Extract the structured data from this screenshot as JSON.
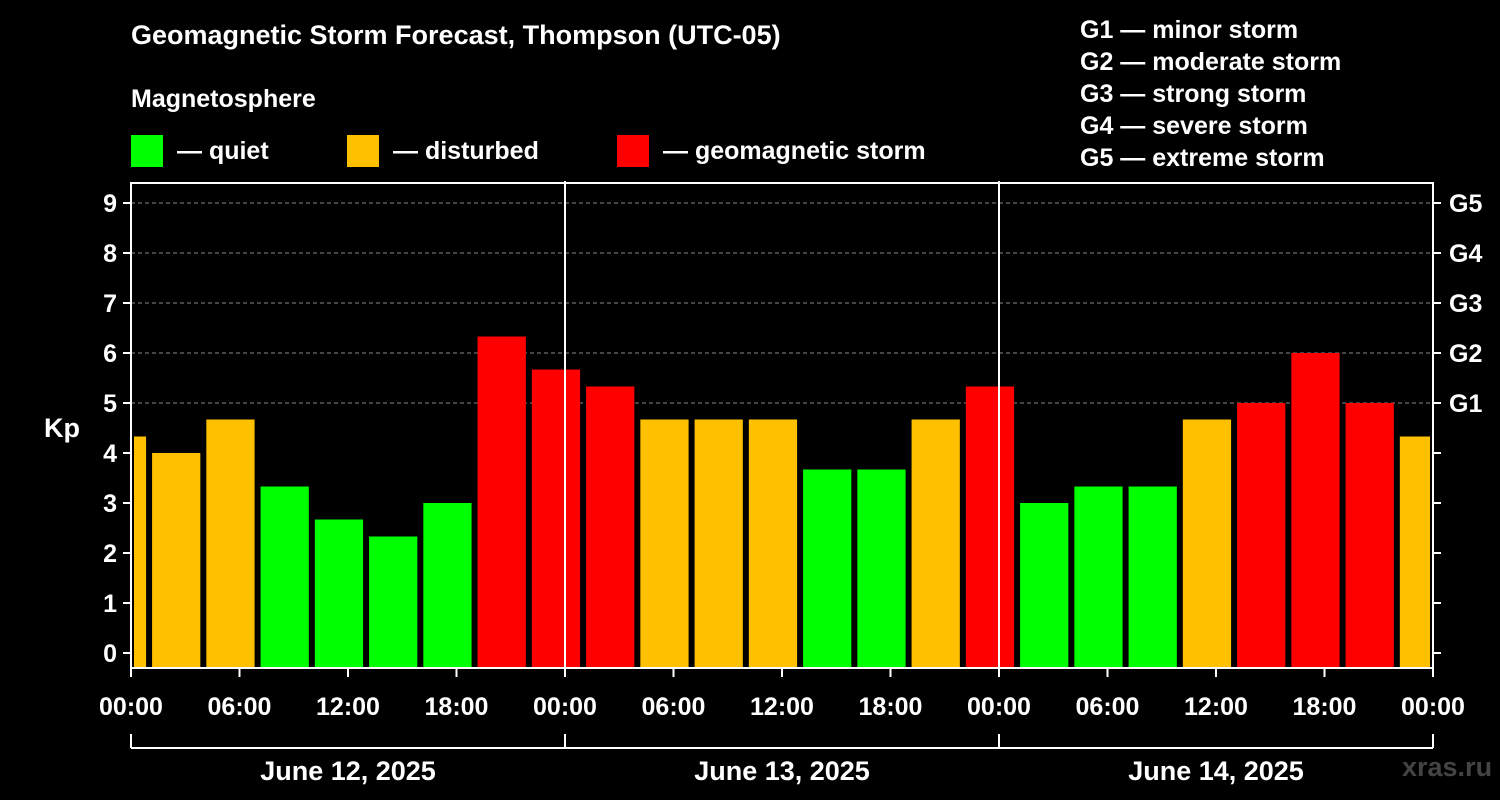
{
  "title": "Geomagnetic Storm Forecast, Thompson (UTC-05)",
  "subtitle": "Magnetosphere",
  "legend": [
    {
      "label": "— quiet",
      "color": "#00ff00"
    },
    {
      "label": "— disturbed",
      "color": "#ffc000"
    },
    {
      "label": "— geomagnetic storm",
      "color": "#ff0000"
    }
  ],
  "g_scale": [
    "G1 — minor storm",
    "G2 — moderate storm",
    "G3 — strong storm",
    "G4 — severe storm",
    "G5 — extreme storm"
  ],
  "watermark": "xras.ru",
  "chart_data": {
    "type": "bar",
    "ylabel": "Kp",
    "ylim": [
      -0.3,
      9.4
    ],
    "yticks": [
      0,
      1,
      2,
      3,
      4,
      5,
      6,
      7,
      8,
      9
    ],
    "right_ticks": [
      {
        "value": 5,
        "label": "G1"
      },
      {
        "value": 6,
        "label": "G2"
      },
      {
        "value": 7,
        "label": "G3"
      },
      {
        "value": 8,
        "label": "G4"
      },
      {
        "value": 9,
        "label": "G5"
      }
    ],
    "x_hours_range": [
      0,
      72
    ],
    "x_tick_hours": [
      0,
      6,
      12,
      18,
      24,
      30,
      36,
      42,
      48,
      54,
      60,
      66,
      72
    ],
    "x_tick_labels": [
      "00:00",
      "06:00",
      "12:00",
      "18:00",
      "00:00",
      "06:00",
      "12:00",
      "18:00",
      "00:00",
      "06:00",
      "12:00",
      "18:00",
      "00:00"
    ],
    "day_separators_hours": [
      24,
      48
    ],
    "days": [
      {
        "label": "June 12, 2025",
        "start": 0,
        "end": 24
      },
      {
        "label": "June 13, 2025",
        "start": 24,
        "end": 48
      },
      {
        "label": "June 14, 2025",
        "start": 48,
        "end": 72
      }
    ],
    "colors": {
      "quiet": "#00ff00",
      "disturbed": "#ffc000",
      "storm": "#ff0000"
    },
    "bars": [
      {
        "start": 0,
        "end": 1,
        "value": 4.33,
        "level": "disturbed"
      },
      {
        "start": 1,
        "end": 4,
        "value": 4.0,
        "level": "disturbed"
      },
      {
        "start": 4,
        "end": 7,
        "value": 4.67,
        "level": "disturbed"
      },
      {
        "start": 7,
        "end": 10,
        "value": 3.33,
        "level": "quiet"
      },
      {
        "start": 10,
        "end": 13,
        "value": 2.67,
        "level": "quiet"
      },
      {
        "start": 13,
        "end": 16,
        "value": 2.33,
        "level": "quiet"
      },
      {
        "start": 16,
        "end": 19,
        "value": 3.0,
        "level": "quiet"
      },
      {
        "start": 19,
        "end": 22,
        "value": 6.33,
        "level": "storm"
      },
      {
        "start": 22,
        "end": 25,
        "value": 5.67,
        "level": "storm"
      },
      {
        "start": 25,
        "end": 28,
        "value": 5.33,
        "level": "storm"
      },
      {
        "start": 28,
        "end": 31,
        "value": 4.67,
        "level": "disturbed"
      },
      {
        "start": 31,
        "end": 34,
        "value": 4.67,
        "level": "disturbed"
      },
      {
        "start": 34,
        "end": 37,
        "value": 4.67,
        "level": "disturbed"
      },
      {
        "start": 37,
        "end": 40,
        "value": 3.67,
        "level": "quiet"
      },
      {
        "start": 40,
        "end": 43,
        "value": 3.67,
        "level": "quiet"
      },
      {
        "start": 43,
        "end": 46,
        "value": 4.67,
        "level": "disturbed"
      },
      {
        "start": 46,
        "end": 49,
        "value": 5.33,
        "level": "storm"
      },
      {
        "start": 49,
        "end": 52,
        "value": 3.0,
        "level": "quiet"
      },
      {
        "start": 52,
        "end": 55,
        "value": 3.33,
        "level": "quiet"
      },
      {
        "start": 55,
        "end": 58,
        "value": 3.33,
        "level": "quiet"
      },
      {
        "start": 58,
        "end": 61,
        "value": 4.67,
        "level": "disturbed"
      },
      {
        "start": 61,
        "end": 64,
        "value": 5.0,
        "level": "storm"
      },
      {
        "start": 64,
        "end": 67,
        "value": 6.0,
        "level": "storm"
      },
      {
        "start": 67,
        "end": 70,
        "value": 5.0,
        "level": "storm"
      },
      {
        "start": 70,
        "end": 72,
        "value": 4.33,
        "level": "disturbed"
      }
    ]
  }
}
